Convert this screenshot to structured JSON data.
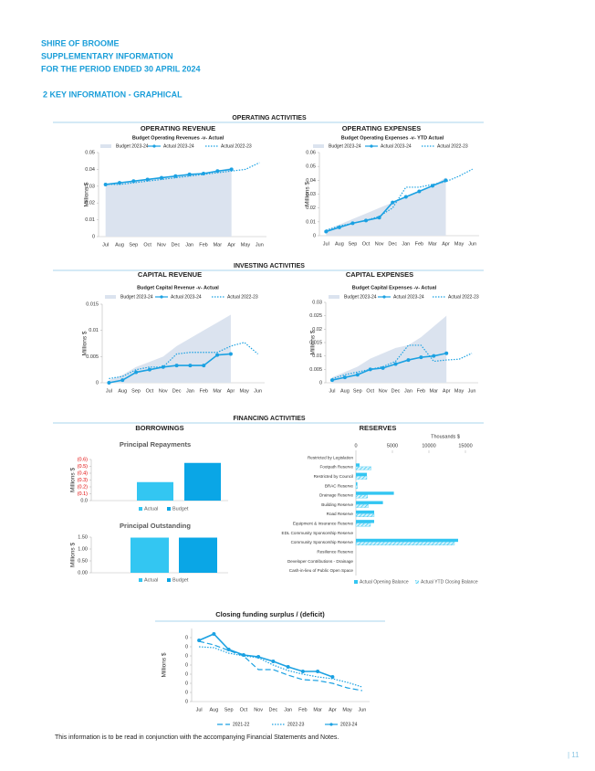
{
  "header": {
    "org": "SHIRE OF BROOME",
    "subtitle": "SUPPLEMENTARY INFORMATION",
    "period": "FOR THE PERIOD ENDED 30 APRIL 2024",
    "section": "2  KEY INFORMATION - GRAPHICAL"
  },
  "activities": [
    {
      "title": "OPERATING ACTIVITIES",
      "panels": [
        "OPERATING REVENUE",
        "OPERATING EXPENSES"
      ]
    },
    {
      "title": "INVESTING ACTIVITIES",
      "panels": [
        "CAPITAL REVENUE",
        "CAPITAL EXPENSES"
      ]
    },
    {
      "title": "FINANCING ACTIVITIES",
      "panels": [
        "BORROWINGS",
        "RESERVES"
      ]
    }
  ],
  "chart_data": [
    {
      "type": "line",
      "title": "Budget Operating Revenues -v- Actual",
      "y_label": "Millions $",
      "categories": [
        "Jul",
        "Aug",
        "Sep",
        "Oct",
        "Nov",
        "Dec",
        "Jan",
        "Feb",
        "Mar",
        "Apr",
        "May",
        "Jun"
      ],
      "ylim": [
        0,
        0.05
      ],
      "yticks": [
        0,
        0.01,
        0.02,
        0.03,
        0.04,
        0.05
      ],
      "grid": false,
      "legend": "top",
      "series": [
        {
          "name": "Budget 2023-24",
          "color": "#dbe3ef",
          "style": "area",
          "values": [
            0.031,
            0.032,
            0.033,
            0.034,
            0.035,
            0.036,
            0.037,
            0.038,
            0.039,
            0.041,
            null,
            null
          ]
        },
        {
          "name": "Actual 2023-24",
          "color": "#1ba1e2",
          "style": "solid-markers",
          "values": [
            0.031,
            0.032,
            0.033,
            0.034,
            0.035,
            0.036,
            0.037,
            0.0375,
            0.039,
            0.04,
            null,
            null
          ]
        },
        {
          "name": "Actual 2022-23",
          "color": "#1ba1e2",
          "style": "dotted",
          "values": [
            0.031,
            0.031,
            0.032,
            0.033,
            0.034,
            0.035,
            0.036,
            0.037,
            0.038,
            0.039,
            0.04,
            0.044
          ]
        }
      ]
    },
    {
      "type": "line",
      "title": "Budget Operating Expenses -v- YTD Actual",
      "y_label": "Millions $",
      "categories": [
        "Jul",
        "Aug",
        "Sep",
        "Oct",
        "Nov",
        "Dec",
        "Jan",
        "Feb",
        "Mar",
        "Apr",
        "May",
        "Jun"
      ],
      "ylim": [
        0,
        0.06
      ],
      "yticks": [
        0,
        0.01,
        0.02,
        0.03,
        0.04,
        0.05,
        0.06
      ],
      "grid": false,
      "legend": "top",
      "series": [
        {
          "name": "Budget 2023-24",
          "color": "#dbe3ef",
          "style": "area",
          "values": [
            0.004,
            0.008,
            0.012,
            0.016,
            0.02,
            0.024,
            0.028,
            0.032,
            0.036,
            0.042,
            null,
            null
          ]
        },
        {
          "name": "Actual 2023-24",
          "color": "#1ba1e2",
          "style": "solid-markers",
          "values": [
            0.003,
            0.006,
            0.009,
            0.011,
            0.013,
            0.024,
            0.028,
            0.032,
            0.036,
            0.04,
            null,
            null
          ]
        },
        {
          "name": "Actual 2022-23",
          "color": "#1ba1e2",
          "style": "dotted",
          "values": [
            0.004,
            0.007,
            0.009,
            0.011,
            0.014,
            0.02,
            0.035,
            0.035,
            0.037,
            0.039,
            0.043,
            0.048
          ]
        }
      ]
    },
    {
      "type": "line",
      "title": "Budget Capital Revenue -v- Actual",
      "y_label": "Millions $",
      "categories": [
        "Jul",
        "Aug",
        "Sep",
        "Oct",
        "Nov",
        "Dec",
        "Jan",
        "Feb",
        "Mar",
        "Apr",
        "May",
        "Jun"
      ],
      "ylim": [
        0,
        0.015
      ],
      "yticks": [
        0,
        0.005,
        0.01,
        0.015
      ],
      "grid": false,
      "legend": "top",
      "series": [
        {
          "name": "Budget 2023-24",
          "color": "#dbe3ef",
          "style": "area",
          "values": [
            0.0005,
            0.0015,
            0.003,
            0.004,
            0.005,
            0.007,
            0.0085,
            0.01,
            0.0115,
            0.013,
            null,
            null
          ]
        },
        {
          "name": "Actual 2023-24",
          "color": "#1ba1e2",
          "style": "solid-markers",
          "values": [
            0,
            0.0005,
            0.002,
            0.0025,
            0.003,
            0.0033,
            0.0033,
            0.0033,
            0.0053,
            0.0055,
            null,
            null
          ]
        },
        {
          "name": "Actual 2022-23",
          "color": "#1ba1e2",
          "style": "dotted",
          "values": [
            0.0008,
            0.0012,
            0.0025,
            0.003,
            0.003,
            0.0055,
            0.0058,
            0.0058,
            0.0058,
            0.007,
            0.0077,
            0.0055
          ]
        }
      ]
    },
    {
      "type": "line",
      "title": "Budget Capital Expenses -v- Actual",
      "y_label": "Millions $",
      "categories": [
        "Jul",
        "Aug",
        "Sep",
        "Oct",
        "Nov",
        "Dec",
        "Jan",
        "Feb",
        "Mar",
        "Apr",
        "May",
        "Jun"
      ],
      "ylim": [
        0,
        0.03
      ],
      "yticks": [
        0,
        0.005,
        0.01,
        0.015,
        0.02,
        0.025,
        0.03
      ],
      "grid": false,
      "legend": "top",
      "series": [
        {
          "name": "Budget 2023-24",
          "color": "#dbe3ef",
          "style": "area",
          "values": [
            0.002,
            0.004,
            0.006,
            0.009,
            0.011,
            0.013,
            0.014,
            0.017,
            0.021,
            0.025,
            null,
            null
          ]
        },
        {
          "name": "Actual 2023-24",
          "color": "#1ba1e2",
          "style": "solid-markers",
          "values": [
            0.001,
            0.002,
            0.003,
            0.005,
            0.0055,
            0.007,
            0.0085,
            0.0095,
            0.01,
            0.011,
            null,
            null
          ]
        },
        {
          "name": "Actual 2022-23",
          "color": "#1ba1e2",
          "style": "dotted",
          "values": [
            0.0015,
            0.003,
            0.004,
            0.005,
            0.006,
            0.008,
            0.014,
            0.014,
            0.008,
            0.0085,
            0.0088,
            0.011
          ]
        }
      ]
    },
    {
      "type": "bar",
      "title": "Principal Repayments",
      "y_label": "Millions $",
      "ylim": [
        0,
        -0.6
      ],
      "negative_tick_color": "#e00000",
      "legend": "bottom",
      "yticks": [
        {
          "value": -0.6,
          "label": "(0.6)"
        },
        {
          "value": -0.5,
          "label": "(0.5)"
        },
        {
          "value": -0.4,
          "label": "(0.4)"
        },
        {
          "value": -0.3,
          "label": "(0.3)"
        },
        {
          "value": -0.2,
          "label": "(0.2)"
        },
        {
          "value": -0.1,
          "label": "(0.1)"
        },
        {
          "value": 0,
          "label": "0.0"
        }
      ],
      "series": [
        {
          "name": "Actual",
          "color": "#33c6f2",
          "values": [
            -0.27
          ]
        },
        {
          "name": "Budget",
          "color": "#0aa6e6",
          "values": [
            -0.55
          ]
        }
      ]
    },
    {
      "type": "bar",
      "title": "Principal Outstanding",
      "y_label": "Millions $",
      "ylim": [
        0,
        1.5
      ],
      "legend": "bottom",
      "yticks": [
        {
          "value": 0,
          "label": "0.00"
        },
        {
          "value": 0.5,
          "label": "0.50"
        },
        {
          "value": 1,
          "label": "1.00"
        },
        {
          "value": 1.5,
          "label": "1.50"
        }
      ],
      "series": [
        {
          "name": "Actual",
          "color": "#33c6f2",
          "values": [
            1.48
          ]
        },
        {
          "name": "Budget",
          "color": "#0aa6e6",
          "values": [
            1.48
          ]
        }
      ]
    },
    {
      "type": "hbar",
      "x_label": "Thousands $",
      "xlim": [
        0,
        15000
      ],
      "xticks": [
        0,
        5000,
        10000,
        15000
      ],
      "legend": "bottom",
      "categories": [
        "Restricted by Legislation",
        "Footpath Reserve",
        "Restricted by Council",
        "BRAC Reserve",
        "Drainage Reserve",
        "Building Reserve",
        "Road Reserve",
        "Equipment & Insurance Reserve",
        "EDL Community Sponsorship Reserve",
        "Community Sponsorship Reserve",
        "Resilience Reserve",
        "Developer Contributions - Drainage",
        "Cash-in-lieu of Public Open Space"
      ],
      "series": [
        {
          "name": "Actual Opening Balance",
          "color": "#33c6f2",
          "hatch": false,
          "values": [
            0,
            500,
            1500,
            200,
            5200,
            3700,
            2500,
            2500,
            0,
            14000,
            0,
            0,
            0
          ]
        },
        {
          "name": "Actual YTD Closing Balance",
          "color": "#33c6f2",
          "hatch": true,
          "values": [
            0,
            2100,
            1500,
            200,
            1600,
            1700,
            2500,
            2000,
            0,
            13500,
            0,
            0,
            0
          ]
        }
      ]
    },
    {
      "type": "line",
      "title": "Closing funding surplus / (deficit)",
      "y_label": "Millions $",
      "categories": [
        "Jul",
        "Aug",
        "Sep",
        "Oct",
        "Nov",
        "Dec",
        "Jan",
        "Feb",
        "Mar",
        "Apr",
        "May",
        "Jun"
      ],
      "ylim": [
        0,
        0.008
      ],
      "grid": false,
      "legend": "bottom",
      "yticks": [
        0,
        {
          "value": 0.001,
          "label": "0"
        },
        {
          "value": 0.002,
          "label": "0"
        },
        {
          "value": 0.003,
          "label": "0"
        },
        {
          "value": 0.004,
          "label": "0"
        },
        {
          "value": 0.005,
          "label": "0"
        },
        {
          "value": 0.006,
          "label": "0"
        },
        {
          "value": 0.007,
          "label": "0"
        }
      ],
      "series": [
        {
          "name": "2021-22",
          "color": "#1ba1e2",
          "style": "dashed",
          "values": [
            0.0066,
            0.0062,
            0.0056,
            0.005,
            0.0035,
            0.0035,
            0.0029,
            0.0024,
            0.0023,
            0.002,
            0.0015,
            0.0012
          ]
        },
        {
          "name": "2022-23",
          "color": "#1ba1e2",
          "style": "dotted",
          "values": [
            0.006,
            0.0059,
            0.0053,
            0.005,
            0.0048,
            0.004,
            0.0034,
            0.003,
            0.0027,
            0.0025,
            0.0021,
            0.0016
          ]
        },
        {
          "name": "2023-24",
          "color": "#1ba1e2",
          "style": "solid-markers",
          "values": [
            0.0067,
            0.0074,
            0.0057,
            0.0051,
            0.0049,
            0.0044,
            0.0038,
            0.0033,
            0.0033,
            0.0027,
            null,
            null
          ]
        }
      ]
    }
  ],
  "footer": {
    "note": "This information is to be read in conjunction with the accompanying Financial Statements and Notes.",
    "page": "| 11"
  }
}
